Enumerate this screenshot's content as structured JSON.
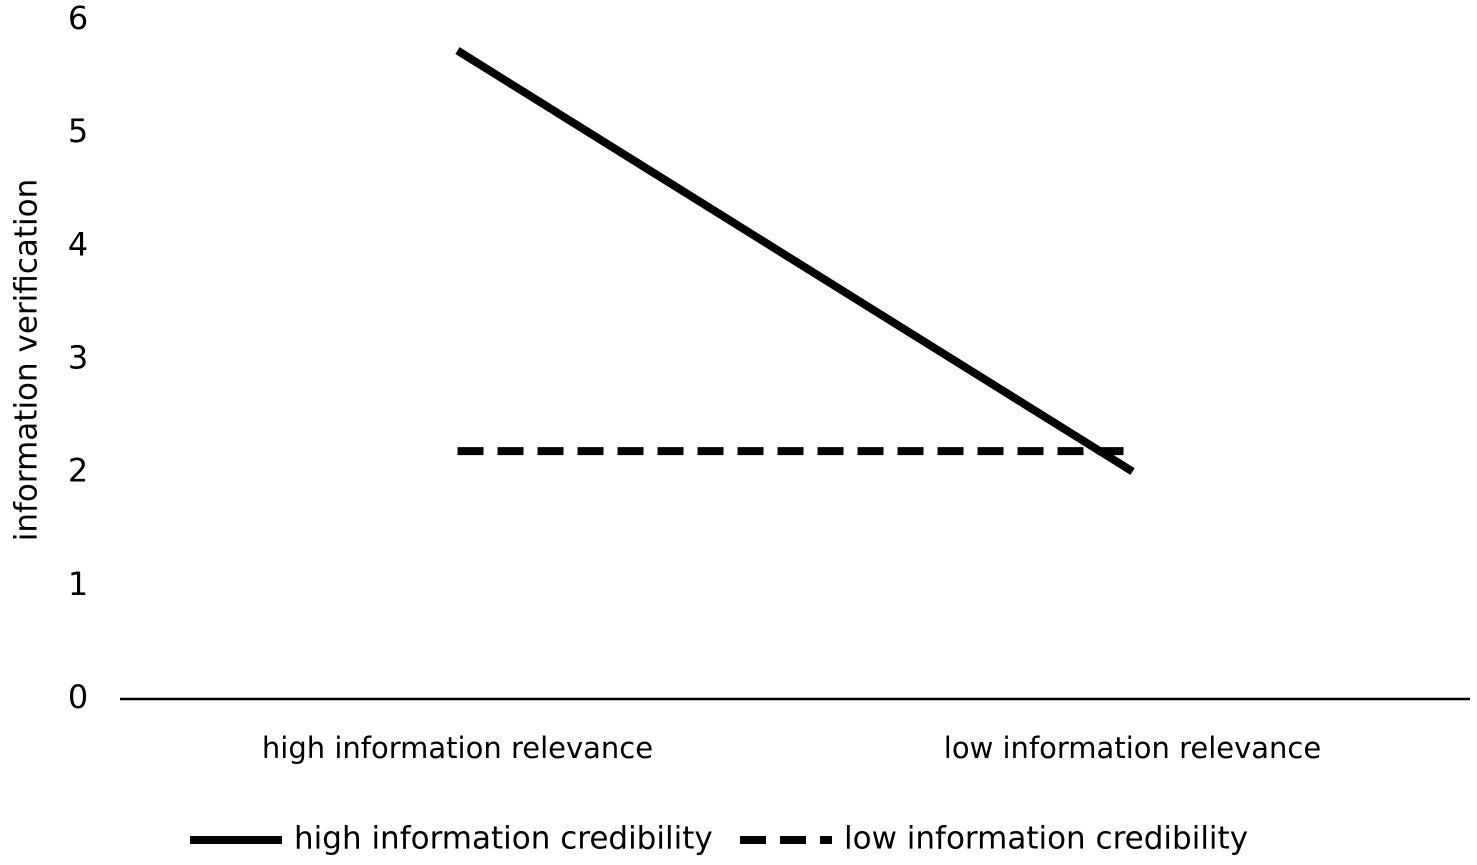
{
  "chart_data": {
    "type": "line",
    "y_label": "information verification",
    "categories": [
      "high information relevance",
      "low information relevance"
    ],
    "series": [
      {
        "name": "high information credibility",
        "color": "#000000",
        "linestyle": "solid",
        "values": [
          5.73,
          2.01
        ]
      },
      {
        "name": "low information credibility",
        "color": "#000000",
        "linestyle": "dashed",
        "values": [
          2.19,
          2.19
        ]
      }
    ],
    "ylim": [
      0,
      6
    ],
    "yticks": [
      0,
      1,
      2,
      3,
      4,
      5,
      6
    ],
    "grid": false,
    "legend": "bottom"
  }
}
